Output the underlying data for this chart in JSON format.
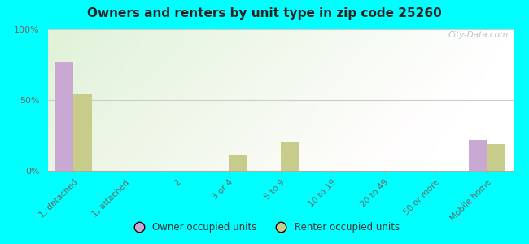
{
  "title": "Owners and renters by unit type in zip code 25260",
  "categories": [
    "1, detached",
    "1, attached",
    "2",
    "3 or 4",
    "5 to 9",
    "10 to 19",
    "20 to 49",
    "50 or more",
    "Mobile home"
  ],
  "owner_values": [
    77,
    0,
    0,
    0,
    0,
    0,
    0,
    0,
    22
  ],
  "renter_values": [
    54,
    0,
    0,
    11,
    20,
    0,
    0,
    0,
    19
  ],
  "owner_color": "#c9a8d4",
  "renter_color": "#c8cc8a",
  "background_color": "#00ffff",
  "ylim": [
    0,
    100
  ],
  "yticks": [
    0,
    50,
    100
  ],
  "ytick_labels": [
    "0%",
    "50%",
    "100%"
  ],
  "bar_width": 0.35,
  "watermark": "City-Data.com",
  "legend_owner": "Owner occupied units",
  "legend_renter": "Renter occupied units"
}
